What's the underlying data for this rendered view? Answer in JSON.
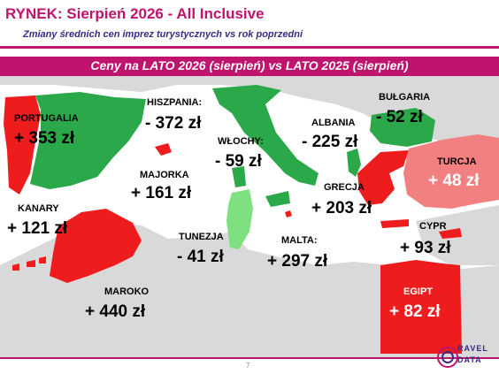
{
  "header": {
    "title": "RYNEK: Sierpień 2026 - All Inclusive",
    "subtitle": "Zmiany średnich cen imprez turystycznych vs rok poprzedni"
  },
  "map": {
    "banner": "Ceny na LATO 2026 (sierpień) vs  LATO 2025 (sierpień)",
    "colors": {
      "increase": "#ee1c1c",
      "decrease": "#2ba84a",
      "decrease_light": "#7ee07e",
      "increase_light": "#f28080",
      "land": "#d9d9d9",
      "sea": "#ffffff"
    },
    "countries": {
      "portugalia": {
        "name": "PORTUGALIA",
        "value": "+ 353 zł"
      },
      "hiszpania": {
        "name": "HISZPANIA:",
        "value": "- 372 zł"
      },
      "wlochy": {
        "name": "WŁOCHY:",
        "value": "- 59 zł"
      },
      "albania": {
        "name": "ALBANIA",
        "value": "- 225 zł"
      },
      "bulgaria": {
        "name": "BUŁGARIA",
        "value": "- 52 zł"
      },
      "turcja": {
        "name": "TURCJA",
        "value": "+ 48 zł"
      },
      "majorka": {
        "name": "MAJORKA",
        "value": "+ 161 zł"
      },
      "grecja": {
        "name": "GRECJA",
        "value": "+ 203 zł"
      },
      "kanary": {
        "name": "KANARY",
        "value": "+ 121 zł"
      },
      "tunezja": {
        "name": "TUNEZJA",
        "value": "- 41 zł"
      },
      "malta": {
        "name": "MALTA:",
        "value": "+ 297 zł"
      },
      "cypr": {
        "name": "CYPR",
        "value": "+ 93 zł"
      },
      "maroko": {
        "name": "MAROKO",
        "value": "+ 440 zł"
      },
      "egipt": {
        "name": "EGIPT",
        "value": "+ 82 zł"
      }
    }
  },
  "footer": {
    "page": "7",
    "logo_top": "RAVEL",
    "logo_bottom": "DATA"
  }
}
